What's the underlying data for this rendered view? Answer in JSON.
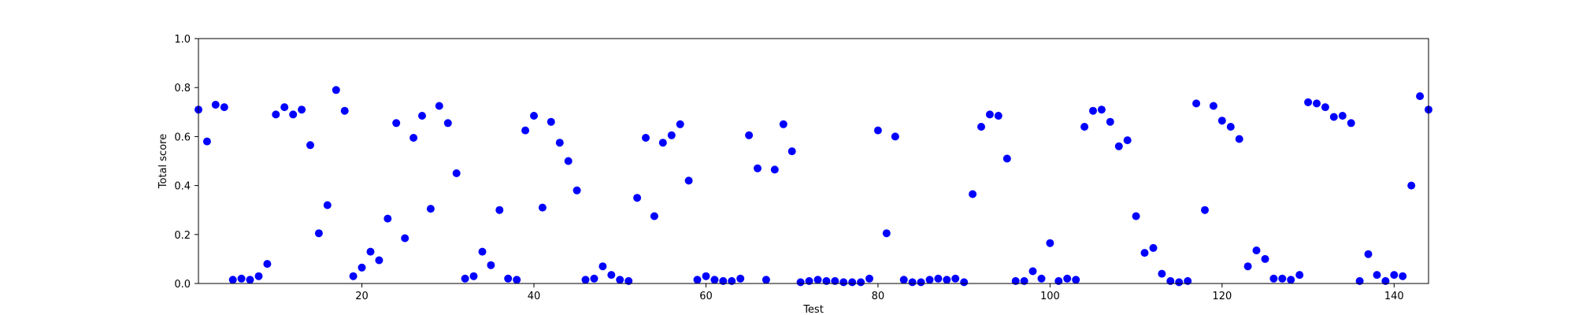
{
  "chart_data": {
    "type": "scatter",
    "title": "",
    "xlabel": "Test",
    "ylabel": "Total score",
    "xlim": [
      1,
      144
    ],
    "ylim": [
      0.0,
      1.0
    ],
    "xticks": [
      20,
      40,
      60,
      80,
      100,
      120,
      140
    ],
    "xtick_labels": [
      "20",
      "40",
      "60",
      "80",
      "100",
      "120",
      "140"
    ],
    "yticks": [
      0.0,
      0.2,
      0.4,
      0.6,
      0.8,
      1.0
    ],
    "ytick_labels": [
      "0.0",
      "0.2",
      "0.4",
      "0.6",
      "0.8",
      "1.0"
    ],
    "grid": false,
    "marker_color": "#0000ff",
    "series": [
      {
        "x": [
          1,
          2,
          3,
          4,
          5,
          6,
          7,
          8,
          9,
          10,
          11,
          12,
          13,
          14,
          15,
          16,
          17,
          18,
          19,
          20,
          21,
          22,
          23,
          24,
          25,
          26,
          27,
          28,
          29,
          30,
          31,
          32,
          33,
          34,
          35,
          36,
          37,
          38,
          39,
          40,
          41,
          42,
          43,
          44,
          45,
          46,
          47,
          48,
          49,
          50,
          51,
          52,
          53,
          54,
          55,
          56,
          57,
          58,
          59,
          60,
          61,
          62,
          63,
          64,
          65,
          66,
          67,
          68,
          69,
          70,
          71,
          72,
          73,
          74,
          75,
          76,
          77,
          78,
          79,
          80,
          81,
          82,
          83,
          84,
          85,
          86,
          87,
          88,
          89,
          90,
          91,
          92,
          93,
          94,
          95,
          96,
          97,
          98,
          99,
          100,
          101,
          102,
          103,
          104,
          105,
          106,
          107,
          108,
          109,
          110,
          111,
          112,
          113,
          114,
          115,
          116,
          117,
          118,
          119,
          120,
          121,
          122,
          123,
          124,
          125,
          126,
          127,
          128,
          129,
          130,
          131,
          132,
          133,
          134,
          135,
          136,
          137,
          138,
          139,
          140,
          141,
          142,
          143,
          144
        ],
        "y": [
          0.71,
          0.58,
          0.73,
          0.72,
          0.015,
          0.02,
          0.015,
          0.03,
          0.08,
          0.69,
          0.72,
          0.69,
          0.71,
          0.565,
          0.205,
          0.32,
          0.79,
          0.705,
          0.03,
          0.065,
          0.13,
          0.095,
          0.265,
          0.655,
          0.185,
          0.595,
          0.685,
          0.305,
          0.725,
          0.655,
          0.45,
          0.02,
          0.03,
          0.13,
          0.075,
          0.3,
          0.02,
          0.015,
          0.625,
          0.685,
          0.31,
          0.66,
          0.575,
          0.5,
          0.38,
          0.015,
          0.02,
          0.07,
          0.035,
          0.015,
          0.01,
          0.35,
          0.595,
          0.275,
          0.575,
          0.605,
          0.65,
          0.42,
          0.015,
          0.03,
          0.015,
          0.01,
          0.01,
          0.02,
          0.605,
          0.47,
          0.015,
          0.465,
          0.65,
          0.54,
          0.005,
          0.01,
          0.015,
          0.01,
          0.01,
          0.005,
          0.005,
          0.005,
          0.02,
          0.625,
          0.205,
          0.6,
          0.015,
          0.005,
          0.005,
          0.015,
          0.02,
          0.015,
          0.02,
          0.005,
          0.365,
          0.64,
          0.69,
          0.685,
          0.51,
          0.01,
          0.01,
          0.05,
          0.02,
          0.165,
          0.01,
          0.02,
          0.015,
          0.64,
          0.705,
          0.71,
          0.66,
          0.56,
          0.585,
          0.275,
          0.125,
          0.145,
          0.04,
          0.01,
          0.005,
          0.01,
          0.735,
          0.3,
          0.725,
          0.665,
          0.64,
          0.59,
          0.07,
          0.135,
          0.1,
          0.02,
          0.02,
          0.015,
          0.035,
          0.74,
          0.735,
          0.72,
          0.68,
          0.685,
          0.655,
          0.01,
          0.12,
          0.035,
          0.01,
          0.035,
          0.03,
          0.4,
          0.765,
          0.71
        ]
      }
    ]
  }
}
